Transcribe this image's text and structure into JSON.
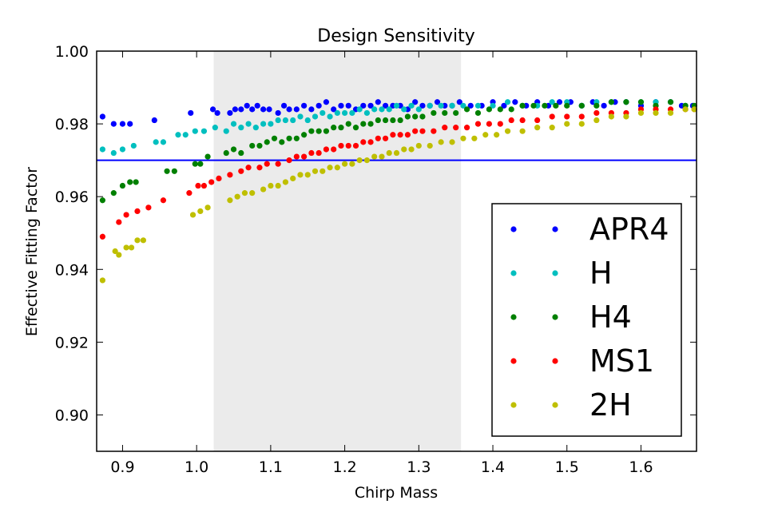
{
  "chart_data": {
    "type": "scatter",
    "title": "Design Sensitivity",
    "xlabel": "Chirp Mass",
    "ylabel": "Effective Fitting Factor",
    "xlim": [
      0.865,
      1.675
    ],
    "ylim": [
      0.89,
      1.0
    ],
    "xticks": [
      0.9,
      1.0,
      1.1,
      1.2,
      1.3,
      1.4,
      1.5,
      1.6
    ],
    "xtick_labels": [
      "0.9",
      "1.0",
      "1.1",
      "1.2",
      "1.3",
      "1.4",
      "1.5",
      "1.6"
    ],
    "yticks": [
      0.9,
      0.92,
      0.94,
      0.96,
      0.98,
      1.0
    ],
    "ytick_labels": [
      "0.90",
      "0.92",
      "0.94",
      "0.96",
      "0.98",
      "1.00"
    ],
    "shaded_region": {
      "x": [
        1.023,
        1.357
      ],
      "color": "#ebebeb"
    },
    "hline": {
      "y": 0.97,
      "color": "#0000ff"
    },
    "legend": {
      "location": "lower-right"
    },
    "series": [
      {
        "name": "APR4",
        "color": "#0000ff",
        "points": [
          [
            0.873,
            0.982
          ],
          [
            0.888,
            0.98
          ],
          [
            0.9,
            0.98
          ],
          [
            0.91,
            0.98
          ],
          [
            0.943,
            0.981
          ],
          [
            0.992,
            0.983
          ],
          [
            1.022,
            0.984
          ],
          [
            1.028,
            0.983
          ],
          [
            1.045,
            0.983
          ],
          [
            1.052,
            0.984
          ],
          [
            1.06,
            0.984
          ],
          [
            1.068,
            0.985
          ],
          [
            1.075,
            0.984
          ],
          [
            1.082,
            0.985
          ],
          [
            1.09,
            0.984
          ],
          [
            1.098,
            0.984
          ],
          [
            1.11,
            0.983
          ],
          [
            1.118,
            0.985
          ],
          [
            1.125,
            0.984
          ],
          [
            1.135,
            0.984
          ],
          [
            1.145,
            0.985
          ],
          [
            1.155,
            0.984
          ],
          [
            1.165,
            0.985
          ],
          [
            1.175,
            0.986
          ],
          [
            1.185,
            0.984
          ],
          [
            1.195,
            0.985
          ],
          [
            1.205,
            0.985
          ],
          [
            1.215,
            0.984
          ],
          [
            1.225,
            0.985
          ],
          [
            1.235,
            0.985
          ],
          [
            1.245,
            0.986
          ],
          [
            1.255,
            0.985
          ],
          [
            1.265,
            0.985
          ],
          [
            1.275,
            0.985
          ],
          [
            1.285,
            0.984
          ],
          [
            1.295,
            0.986
          ],
          [
            1.305,
            0.985
          ],
          [
            1.315,
            0.985
          ],
          [
            1.325,
            0.986
          ],
          [
            1.335,
            0.985
          ],
          [
            1.345,
            0.985
          ],
          [
            1.355,
            0.986
          ],
          [
            1.37,
            0.985
          ],
          [
            1.385,
            0.985
          ],
          [
            1.4,
            0.986
          ],
          [
            1.415,
            0.985
          ],
          [
            1.43,
            0.986
          ],
          [
            1.445,
            0.985
          ],
          [
            1.46,
            0.986
          ],
          [
            1.475,
            0.985
          ],
          [
            1.49,
            0.986
          ],
          [
            1.505,
            0.986
          ],
          [
            1.52,
            0.985
          ],
          [
            1.535,
            0.986
          ],
          [
            1.55,
            0.985
          ],
          [
            1.565,
            0.986
          ],
          [
            1.58,
            0.986
          ],
          [
            1.6,
            0.985
          ],
          [
            1.62,
            0.986
          ],
          [
            1.64,
            0.986
          ],
          [
            1.655,
            0.985
          ],
          [
            1.67,
            0.985
          ]
        ]
      },
      {
        "name": "H",
        "color": "#00bfbf",
        "points": [
          [
            0.873,
            0.973
          ],
          [
            0.888,
            0.972
          ],
          [
            0.9,
            0.973
          ],
          [
            0.915,
            0.974
          ],
          [
            0.945,
            0.975
          ],
          [
            0.955,
            0.975
          ],
          [
            0.975,
            0.977
          ],
          [
            0.985,
            0.977
          ],
          [
            0.998,
            0.978
          ],
          [
            1.01,
            0.978
          ],
          [
            1.025,
            0.979
          ],
          [
            1.04,
            0.978
          ],
          [
            1.05,
            0.98
          ],
          [
            1.06,
            0.979
          ],
          [
            1.07,
            0.98
          ],
          [
            1.08,
            0.979
          ],
          [
            1.09,
            0.98
          ],
          [
            1.1,
            0.98
          ],
          [
            1.11,
            0.981
          ],
          [
            1.12,
            0.981
          ],
          [
            1.13,
            0.981
          ],
          [
            1.14,
            0.982
          ],
          [
            1.15,
            0.981
          ],
          [
            1.16,
            0.982
          ],
          [
            1.17,
            0.983
          ],
          [
            1.18,
            0.982
          ],
          [
            1.19,
            0.983
          ],
          [
            1.2,
            0.983
          ],
          [
            1.21,
            0.983
          ],
          [
            1.22,
            0.984
          ],
          [
            1.23,
            0.983
          ],
          [
            1.24,
            0.984
          ],
          [
            1.25,
            0.984
          ],
          [
            1.26,
            0.984
          ],
          [
            1.27,
            0.985
          ],
          [
            1.28,
            0.984
          ],
          [
            1.29,
            0.985
          ],
          [
            1.3,
            0.984
          ],
          [
            1.315,
            0.985
          ],
          [
            1.33,
            0.985
          ],
          [
            1.345,
            0.985
          ],
          [
            1.36,
            0.985
          ],
          [
            1.38,
            0.985
          ],
          [
            1.4,
            0.985
          ],
          [
            1.42,
            0.986
          ],
          [
            1.44,
            0.985
          ],
          [
            1.46,
            0.985
          ],
          [
            1.48,
            0.986
          ],
          [
            1.5,
            0.986
          ],
          [
            1.52,
            0.985
          ],
          [
            1.54,
            0.986
          ],
          [
            1.56,
            0.986
          ],
          [
            1.58,
            0.986
          ],
          [
            1.6,
            0.986
          ],
          [
            1.62,
            0.986
          ],
          [
            1.64,
            0.986
          ],
          [
            1.66,
            0.985
          ]
        ]
      },
      {
        "name": "H4",
        "color": "#008000",
        "points": [
          [
            0.873,
            0.959
          ],
          [
            0.888,
            0.961
          ],
          [
            0.9,
            0.963
          ],
          [
            0.91,
            0.964
          ],
          [
            0.918,
            0.964
          ],
          [
            0.96,
            0.967
          ],
          [
            0.97,
            0.967
          ],
          [
            0.998,
            0.969
          ],
          [
            1.005,
            0.969
          ],
          [
            1.015,
            0.971
          ],
          [
            1.04,
            0.972
          ],
          [
            1.05,
            0.973
          ],
          [
            1.06,
            0.972
          ],
          [
            1.075,
            0.974
          ],
          [
            1.085,
            0.974
          ],
          [
            1.095,
            0.975
          ],
          [
            1.105,
            0.976
          ],
          [
            1.115,
            0.975
          ],
          [
            1.125,
            0.976
          ],
          [
            1.135,
            0.976
          ],
          [
            1.145,
            0.977
          ],
          [
            1.155,
            0.978
          ],
          [
            1.165,
            0.978
          ],
          [
            1.175,
            0.978
          ],
          [
            1.185,
            0.979
          ],
          [
            1.195,
            0.979
          ],
          [
            1.205,
            0.98
          ],
          [
            1.215,
            0.979
          ],
          [
            1.225,
            0.98
          ],
          [
            1.235,
            0.98
          ],
          [
            1.245,
            0.981
          ],
          [
            1.255,
            0.981
          ],
          [
            1.265,
            0.981
          ],
          [
            1.275,
            0.981
          ],
          [
            1.285,
            0.982
          ],
          [
            1.295,
            0.982
          ],
          [
            1.305,
            0.982
          ],
          [
            1.32,
            0.983
          ],
          [
            1.335,
            0.983
          ],
          [
            1.35,
            0.983
          ],
          [
            1.365,
            0.984
          ],
          [
            1.38,
            0.983
          ],
          [
            1.395,
            0.984
          ],
          [
            1.41,
            0.984
          ],
          [
            1.425,
            0.984
          ],
          [
            1.44,
            0.985
          ],
          [
            1.455,
            0.985
          ],
          [
            1.47,
            0.985
          ],
          [
            1.485,
            0.985
          ],
          [
            1.5,
            0.985
          ],
          [
            1.52,
            0.985
          ],
          [
            1.54,
            0.985
          ],
          [
            1.56,
            0.986
          ],
          [
            1.58,
            0.986
          ],
          [
            1.6,
            0.986
          ],
          [
            1.62,
            0.985
          ],
          [
            1.64,
            0.986
          ],
          [
            1.66,
            0.985
          ],
          [
            1.672,
            0.985
          ]
        ]
      },
      {
        "name": "MS1",
        "color": "#ff0000",
        "points": [
          [
            0.873,
            0.949
          ],
          [
            0.895,
            0.953
          ],
          [
            0.905,
            0.955
          ],
          [
            0.92,
            0.956
          ],
          [
            0.935,
            0.957
          ],
          [
            0.955,
            0.959
          ],
          [
            0.99,
            0.961
          ],
          [
            1.002,
            0.963
          ],
          [
            1.01,
            0.963
          ],
          [
            1.02,
            0.964
          ],
          [
            1.03,
            0.965
          ],
          [
            1.045,
            0.966
          ],
          [
            1.06,
            0.967
          ],
          [
            1.07,
            0.968
          ],
          [
            1.085,
            0.968
          ],
          [
            1.095,
            0.969
          ],
          [
            1.11,
            0.969
          ],
          [
            1.125,
            0.97
          ],
          [
            1.135,
            0.971
          ],
          [
            1.145,
            0.971
          ],
          [
            1.155,
            0.972
          ],
          [
            1.165,
            0.972
          ],
          [
            1.175,
            0.973
          ],
          [
            1.185,
            0.973
          ],
          [
            1.195,
            0.974
          ],
          [
            1.205,
            0.974
          ],
          [
            1.215,
            0.974
          ],
          [
            1.225,
            0.975
          ],
          [
            1.235,
            0.975
          ],
          [
            1.245,
            0.976
          ],
          [
            1.255,
            0.976
          ],
          [
            1.265,
            0.977
          ],
          [
            1.275,
            0.977
          ],
          [
            1.285,
            0.977
          ],
          [
            1.295,
            0.978
          ],
          [
            1.305,
            0.978
          ],
          [
            1.32,
            0.978
          ],
          [
            1.335,
            0.979
          ],
          [
            1.35,
            0.979
          ],
          [
            1.365,
            0.979
          ],
          [
            1.38,
            0.98
          ],
          [
            1.395,
            0.98
          ],
          [
            1.41,
            0.98
          ],
          [
            1.425,
            0.981
          ],
          [
            1.44,
            0.981
          ],
          [
            1.46,
            0.981
          ],
          [
            1.48,
            0.982
          ],
          [
            1.5,
            0.982
          ],
          [
            1.52,
            0.982
          ],
          [
            1.54,
            0.983
          ],
          [
            1.56,
            0.983
          ],
          [
            1.58,
            0.983
          ],
          [
            1.6,
            0.984
          ],
          [
            1.62,
            0.984
          ],
          [
            1.64,
            0.984
          ],
          [
            1.66,
            0.984
          ],
          [
            1.672,
            0.984
          ]
        ]
      },
      {
        "name": "2H",
        "color": "#bfbf00",
        "points": [
          [
            0.873,
            0.937
          ],
          [
            0.89,
            0.945
          ],
          [
            0.895,
            0.944
          ],
          [
            0.905,
            0.946
          ],
          [
            0.912,
            0.946
          ],
          [
            0.92,
            0.948
          ],
          [
            0.928,
            0.948
          ],
          [
            0.995,
            0.955
          ],
          [
            1.005,
            0.956
          ],
          [
            1.015,
            0.957
          ],
          [
            1.045,
            0.959
          ],
          [
            1.055,
            0.96
          ],
          [
            1.065,
            0.961
          ],
          [
            1.075,
            0.961
          ],
          [
            1.09,
            0.962
          ],
          [
            1.1,
            0.963
          ],
          [
            1.11,
            0.963
          ],
          [
            1.12,
            0.964
          ],
          [
            1.13,
            0.965
          ],
          [
            1.14,
            0.966
          ],
          [
            1.15,
            0.966
          ],
          [
            1.16,
            0.967
          ],
          [
            1.17,
            0.967
          ],
          [
            1.18,
            0.968
          ],
          [
            1.19,
            0.968
          ],
          [
            1.2,
            0.969
          ],
          [
            1.21,
            0.969
          ],
          [
            1.22,
            0.97
          ],
          [
            1.23,
            0.97
          ],
          [
            1.24,
            0.971
          ],
          [
            1.25,
            0.971
          ],
          [
            1.26,
            0.972
          ],
          [
            1.27,
            0.972
          ],
          [
            1.28,
            0.973
          ],
          [
            1.29,
            0.973
          ],
          [
            1.3,
            0.974
          ],
          [
            1.315,
            0.974
          ],
          [
            1.33,
            0.975
          ],
          [
            1.345,
            0.975
          ],
          [
            1.36,
            0.976
          ],
          [
            1.375,
            0.976
          ],
          [
            1.39,
            0.977
          ],
          [
            1.405,
            0.977
          ],
          [
            1.42,
            0.978
          ],
          [
            1.44,
            0.978
          ],
          [
            1.46,
            0.979
          ],
          [
            1.48,
            0.979
          ],
          [
            1.5,
            0.98
          ],
          [
            1.52,
            0.98
          ],
          [
            1.54,
            0.981
          ],
          [
            1.56,
            0.982
          ],
          [
            1.58,
            0.982
          ],
          [
            1.6,
            0.983
          ],
          [
            1.62,
            0.983
          ],
          [
            1.64,
            0.983
          ],
          [
            1.66,
            0.984
          ],
          [
            1.672,
            0.984
          ]
        ]
      }
    ]
  }
}
